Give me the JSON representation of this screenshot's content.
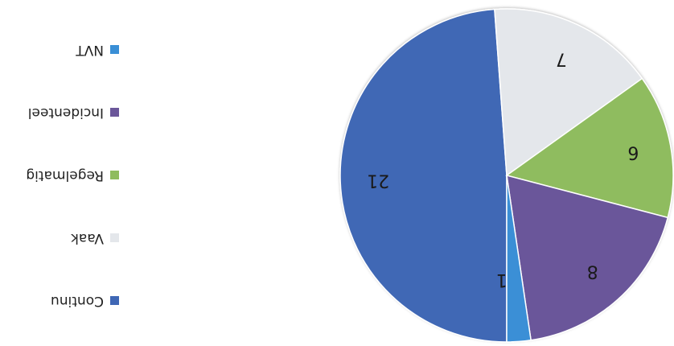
{
  "chart_data": {
    "type": "pie",
    "title": "",
    "categories": [
      "Continu",
      "Vaak",
      "Regelmatig",
      "Incidenteel",
      "NVT"
    ],
    "values": [
      21,
      7,
      6,
      8,
      1
    ],
    "colors": [
      "#3f67b5",
      "#e4e7eb",
      "#8fbc5e",
      "#6b579a",
      "#3a8fd6"
    ],
    "legend_position": "right"
  }
}
